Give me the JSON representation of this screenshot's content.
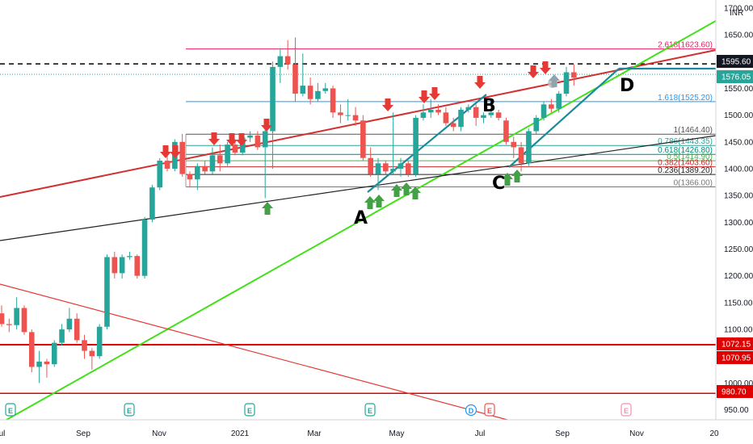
{
  "chart_data": {
    "type": "candlestick",
    "currency_label": "INR",
    "x_axis": {
      "tick_labels": [
        "Jul",
        "Sep",
        "Nov",
        "2021",
        "Mar",
        "May",
        "Jul",
        "Sep",
        "Nov",
        "20"
      ]
    },
    "y_axis": {
      "range": [
        937,
        1705
      ],
      "tick_labels": [
        "950.00",
        "1000.00",
        "1050.00",
        "1100.00",
        "1150.00",
        "1200.00",
        "1250.00",
        "1300.00",
        "1350.00",
        "1400.00",
        "1450.00",
        "1500.00",
        "1550.00",
        "1600.00",
        "1650.00",
        "1700.00"
      ]
    },
    "candles": [
      {
        "o": 1130,
        "h": 1145,
        "l": 1105,
        "c": 1110
      },
      {
        "o": 1110,
        "h": 1120,
        "l": 1095,
        "c": 1108
      },
      {
        "o": 1108,
        "h": 1160,
        "l": 1100,
        "c": 1140
      },
      {
        "o": 1140,
        "h": 1145,
        "l": 1090,
        "c": 1095
      },
      {
        "o": 1095,
        "h": 1100,
        "l": 1020,
        "c": 1030
      },
      {
        "o": 1030,
        "h": 1060,
        "l": 1000,
        "c": 1040
      },
      {
        "o": 1040,
        "h": 1045,
        "l": 1010,
        "c": 1035
      },
      {
        "o": 1035,
        "h": 1080,
        "l": 1030,
        "c": 1075
      },
      {
        "o": 1075,
        "h": 1110,
        "l": 1070,
        "c": 1100
      },
      {
        "o": 1100,
        "h": 1140,
        "l": 1095,
        "c": 1120
      },
      {
        "o": 1120,
        "h": 1130,
        "l": 1075,
        "c": 1080
      },
      {
        "o": 1080,
        "h": 1090,
        "l": 1045,
        "c": 1060
      },
      {
        "o": 1060,
        "h": 1065,
        "l": 1025,
        "c": 1050
      },
      {
        "o": 1050,
        "h": 1110,
        "l": 1045,
        "c": 1105
      },
      {
        "o": 1105,
        "h": 1240,
        "l": 1100,
        "c": 1235
      },
      {
        "o": 1235,
        "h": 1245,
        "l": 1195,
        "c": 1205
      },
      {
        "o": 1205,
        "h": 1240,
        "l": 1195,
        "c": 1235
      },
      {
        "o": 1235,
        "h": 1245,
        "l": 1230,
        "c": 1237
      },
      {
        "o": 1237,
        "h": 1240,
        "l": 1195,
        "c": 1200
      },
      {
        "o": 1200,
        "h": 1310,
        "l": 1195,
        "c": 1305
      },
      {
        "o": 1305,
        "h": 1370,
        "l": 1300,
        "c": 1365
      },
      {
        "o": 1365,
        "h": 1420,
        "l": 1360,
        "c": 1415
      },
      {
        "o": 1415,
        "h": 1440,
        "l": 1395,
        "c": 1400
      },
      {
        "o": 1400,
        "h": 1455,
        "l": 1395,
        "c": 1450
      },
      {
        "o": 1450,
        "h": 1465,
        "l": 1385,
        "c": 1390
      },
      {
        "o": 1390,
        "h": 1395,
        "l": 1365,
        "c": 1380
      },
      {
        "o": 1380,
        "h": 1410,
        "l": 1360,
        "c": 1405
      },
      {
        "o": 1405,
        "h": 1415,
        "l": 1390,
        "c": 1395
      },
      {
        "o": 1395,
        "h": 1440,
        "l": 1390,
        "c": 1425
      },
      {
        "o": 1425,
        "h": 1445,
        "l": 1395,
        "c": 1410
      },
      {
        "o": 1410,
        "h": 1450,
        "l": 1405,
        "c": 1445
      },
      {
        "o": 1445,
        "h": 1455,
        "l": 1425,
        "c": 1430
      },
      {
        "o": 1430,
        "h": 1465,
        "l": 1425,
        "c": 1458
      },
      {
        "o": 1458,
        "h": 1470,
        "l": 1450,
        "c": 1462
      },
      {
        "o": 1462,
        "h": 1470,
        "l": 1435,
        "c": 1440
      },
      {
        "o": 1440,
        "h": 1480,
        "l": 1345,
        "c": 1470
      },
      {
        "o": 1470,
        "h": 1600,
        "l": 1400,
        "c": 1590
      },
      {
        "o": 1590,
        "h": 1625,
        "l": 1560,
        "c": 1610
      },
      {
        "o": 1610,
        "h": 1640,
        "l": 1585,
        "c": 1595
      },
      {
        "o": 1595,
        "h": 1645,
        "l": 1525,
        "c": 1540
      },
      {
        "o": 1540,
        "h": 1615,
        "l": 1535,
        "c": 1555
      },
      {
        "o": 1555,
        "h": 1570,
        "l": 1520,
        "c": 1530
      },
      {
        "o": 1530,
        "h": 1560,
        "l": 1525,
        "c": 1545
      },
      {
        "o": 1545,
        "h": 1560,
        "l": 1540,
        "c": 1550
      },
      {
        "o": 1550,
        "h": 1555,
        "l": 1495,
        "c": 1505
      },
      {
        "o": 1505,
        "h": 1520,
        "l": 1485,
        "c": 1500
      },
      {
        "o": 1500,
        "h": 1530,
        "l": 1490,
        "c": 1500
      },
      {
        "o": 1500,
        "h": 1515,
        "l": 1480,
        "c": 1490
      },
      {
        "o": 1490,
        "h": 1500,
        "l": 1415,
        "c": 1420
      },
      {
        "o": 1420,
        "h": 1440,
        "l": 1385,
        "c": 1390
      },
      {
        "o": 1390,
        "h": 1420,
        "l": 1360,
        "c": 1410
      },
      {
        "o": 1410,
        "h": 1415,
        "l": 1390,
        "c": 1395
      },
      {
        "o": 1395,
        "h": 1505,
        "l": 1390,
        "c": 1400
      },
      {
        "o": 1400,
        "h": 1420,
        "l": 1385,
        "c": 1410
      },
      {
        "o": 1410,
        "h": 1415,
        "l": 1385,
        "c": 1390
      },
      {
        "o": 1390,
        "h": 1500,
        "l": 1385,
        "c": 1495
      },
      {
        "o": 1495,
        "h": 1520,
        "l": 1490,
        "c": 1505
      },
      {
        "o": 1505,
        "h": 1530,
        "l": 1495,
        "c": 1510
      },
      {
        "o": 1510,
        "h": 1520,
        "l": 1500,
        "c": 1505
      },
      {
        "o": 1505,
        "h": 1515,
        "l": 1480,
        "c": 1485
      },
      {
        "o": 1485,
        "h": 1495,
        "l": 1470,
        "c": 1478
      },
      {
        "o": 1478,
        "h": 1515,
        "l": 1470,
        "c": 1510
      },
      {
        "o": 1510,
        "h": 1520,
        "l": 1505,
        "c": 1515
      },
      {
        "o": 1515,
        "h": 1520,
        "l": 1480,
        "c": 1495
      },
      {
        "o": 1495,
        "h": 1505,
        "l": 1485,
        "c": 1500
      },
      {
        "o": 1500,
        "h": 1525,
        "l": 1495,
        "c": 1505
      },
      {
        "o": 1505,
        "h": 1510,
        "l": 1490,
        "c": 1495
      },
      {
        "o": 1490,
        "h": 1495,
        "l": 1445,
        "c": 1450
      },
      {
        "o": 1450,
        "h": 1460,
        "l": 1420,
        "c": 1440
      },
      {
        "o": 1440,
        "h": 1450,
        "l": 1395,
        "c": 1410
      },
      {
        "o": 1410,
        "h": 1475,
        "l": 1405,
        "c": 1470
      },
      {
        "o": 1470,
        "h": 1500,
        "l": 1465,
        "c": 1495
      },
      {
        "o": 1495,
        "h": 1525,
        "l": 1490,
        "c": 1520
      },
      {
        "o": 1520,
        "h": 1530,
        "l": 1505,
        "c": 1512
      },
      {
        "o": 1512,
        "h": 1545,
        "l": 1505,
        "c": 1540
      },
      {
        "o": 1540,
        "h": 1590,
        "l": 1535,
        "c": 1580
      },
      {
        "o": 1580,
        "h": 1595,
        "l": 1555,
        "c": 1570
      }
    ],
    "trend_lines": [
      {
        "name": "red-trendline",
        "color": "#d32f2f"
      },
      {
        "name": "green-trendline",
        "color": "#41e01a"
      },
      {
        "name": "black-trendline",
        "color": "#222222"
      },
      {
        "name": "red-descending-trendline",
        "color": "#e53935"
      },
      {
        "name": "teal-projection-line",
        "color": "#1b8a9a"
      }
    ],
    "fib_levels": [
      {
        "label": "2.618(1623.60)",
        "value": 1623.6,
        "color": "#e91e63"
      },
      {
        "label": "1.618(1525.20)",
        "value": 1525.2,
        "color": "#2196f3"
      },
      {
        "label": "1(1464.40)",
        "value": 1464.4,
        "color": "#555555"
      },
      {
        "label": "0.786(1443.35)",
        "value": 1443.35,
        "color": "#26a69a"
      },
      {
        "label": "0.618(1426.80)",
        "value": 1426.8,
        "color": "#00897b"
      },
      {
        "label": "0.5(1414.90)",
        "value": 1414.9,
        "color": "#4caf50"
      },
      {
        "label": "0.382(1403.60)",
        "value": 1403.6,
        "color": "#c62828"
      },
      {
        "label": "0.236(1389.20)",
        "value": 1389.2,
        "color": "#222222"
      },
      {
        "label": "0(1366.00)",
        "value": 1366.0,
        "color": "#777777"
      }
    ],
    "point_labels": [
      "A",
      "B",
      "C",
      "D"
    ],
    "price_tags": [
      {
        "text": "1595.60",
        "bg": "#131722",
        "fg": "#ffffff"
      },
      {
        "text": "1576.05",
        "bg": "#26a69a",
        "fg": "#ffffff"
      },
      {
        "text": "1072.15",
        "bg": "#e00000",
        "fg": "#ffffff"
      },
      {
        "text": "1070.95",
        "bg": "#e00000",
        "fg": "#ffffff"
      },
      {
        "text": "980.70",
        "bg": "#e00000",
        "fg": "#ffffff"
      }
    ],
    "events": [
      {
        "text": "E",
        "color": "#26a69a"
      },
      {
        "text": "E",
        "color": "#26a69a"
      },
      {
        "text": "E",
        "color": "#26a69a"
      },
      {
        "text": "E",
        "color": "#26a69a"
      },
      {
        "text": "D",
        "color": "#2196f3"
      },
      {
        "text": "E",
        "color": "#ef5350"
      },
      {
        "text": "E",
        "color": "#f48fb1"
      }
    ]
  }
}
